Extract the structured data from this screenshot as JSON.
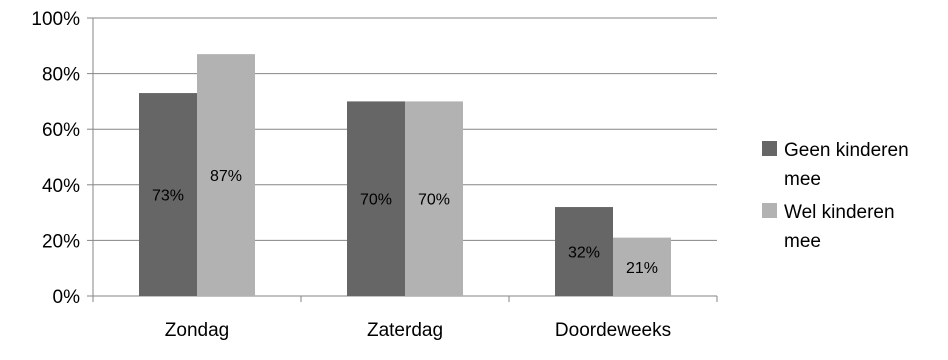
{
  "chart_data": {
    "type": "bar",
    "categories": [
      "Zondag",
      "Zaterdag",
      "Doordeweeks"
    ],
    "series": [
      {
        "name": "Geen kinderen mee",
        "values": [
          73,
          70,
          32
        ],
        "labels": [
          "73%",
          "70%",
          "32%"
        ],
        "color": "#666666"
      },
      {
        "name": "Wel kinderen mee",
        "values": [
          87,
          70,
          21
        ],
        "labels": [
          "87%",
          "70%",
          "21%"
        ],
        "color": "#b2b2b2"
      }
    ],
    "yticks": [
      0,
      20,
      40,
      60,
      80,
      100
    ],
    "ytick_labels": [
      "0%",
      "20%",
      "40%",
      "60%",
      "80%",
      "100%"
    ],
    "ylim": [
      0,
      100
    ],
    "grid": true,
    "legend_position": "right",
    "legend": [
      {
        "line1": "Geen kinderen",
        "line2": "mee"
      },
      {
        "line1": "Wel kinderen",
        "line2": "mee"
      }
    ],
    "title": "",
    "xlabel": "",
    "ylabel": ""
  }
}
